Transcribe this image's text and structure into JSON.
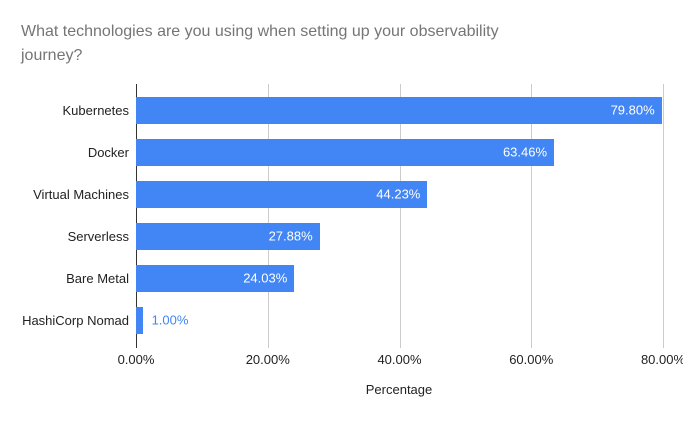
{
  "header": {
    "title_line1": "What technologies are you using when setting up your observability",
    "title_line2": "journey?"
  },
  "chart_data": {
    "type": "bar",
    "orientation": "horizontal",
    "title": "What technologies are you using when setting up your observability journey?",
    "categories": [
      "Kubernetes",
      "Docker",
      "Virtual Machines",
      "Serverless",
      "Bare Metal",
      "HashiCorp Nomad"
    ],
    "values": [
      79.8,
      63.46,
      44.23,
      27.88,
      24.03,
      1.0
    ],
    "value_labels": [
      "79.80%",
      "63.46%",
      "44.23%",
      "27.88%",
      "24.03%",
      "1.00%"
    ],
    "xlabel": "Percentage",
    "x_ticks": [
      "0.00%",
      "20.00%",
      "40.00%",
      "60.00%",
      "80.00%"
    ],
    "x_tick_values": [
      0,
      20,
      40,
      60,
      80
    ],
    "xlim": [
      0,
      82.4
    ],
    "grid": true,
    "legend": "none"
  },
  "colors": {
    "bar": "#4285f4",
    "title": "#757575",
    "axis_text": "#222222",
    "gridline": "#cccccc",
    "baseline": "#333333",
    "bar_label_inside": "#ffffff",
    "bar_label_outside": "#4285f4"
  }
}
